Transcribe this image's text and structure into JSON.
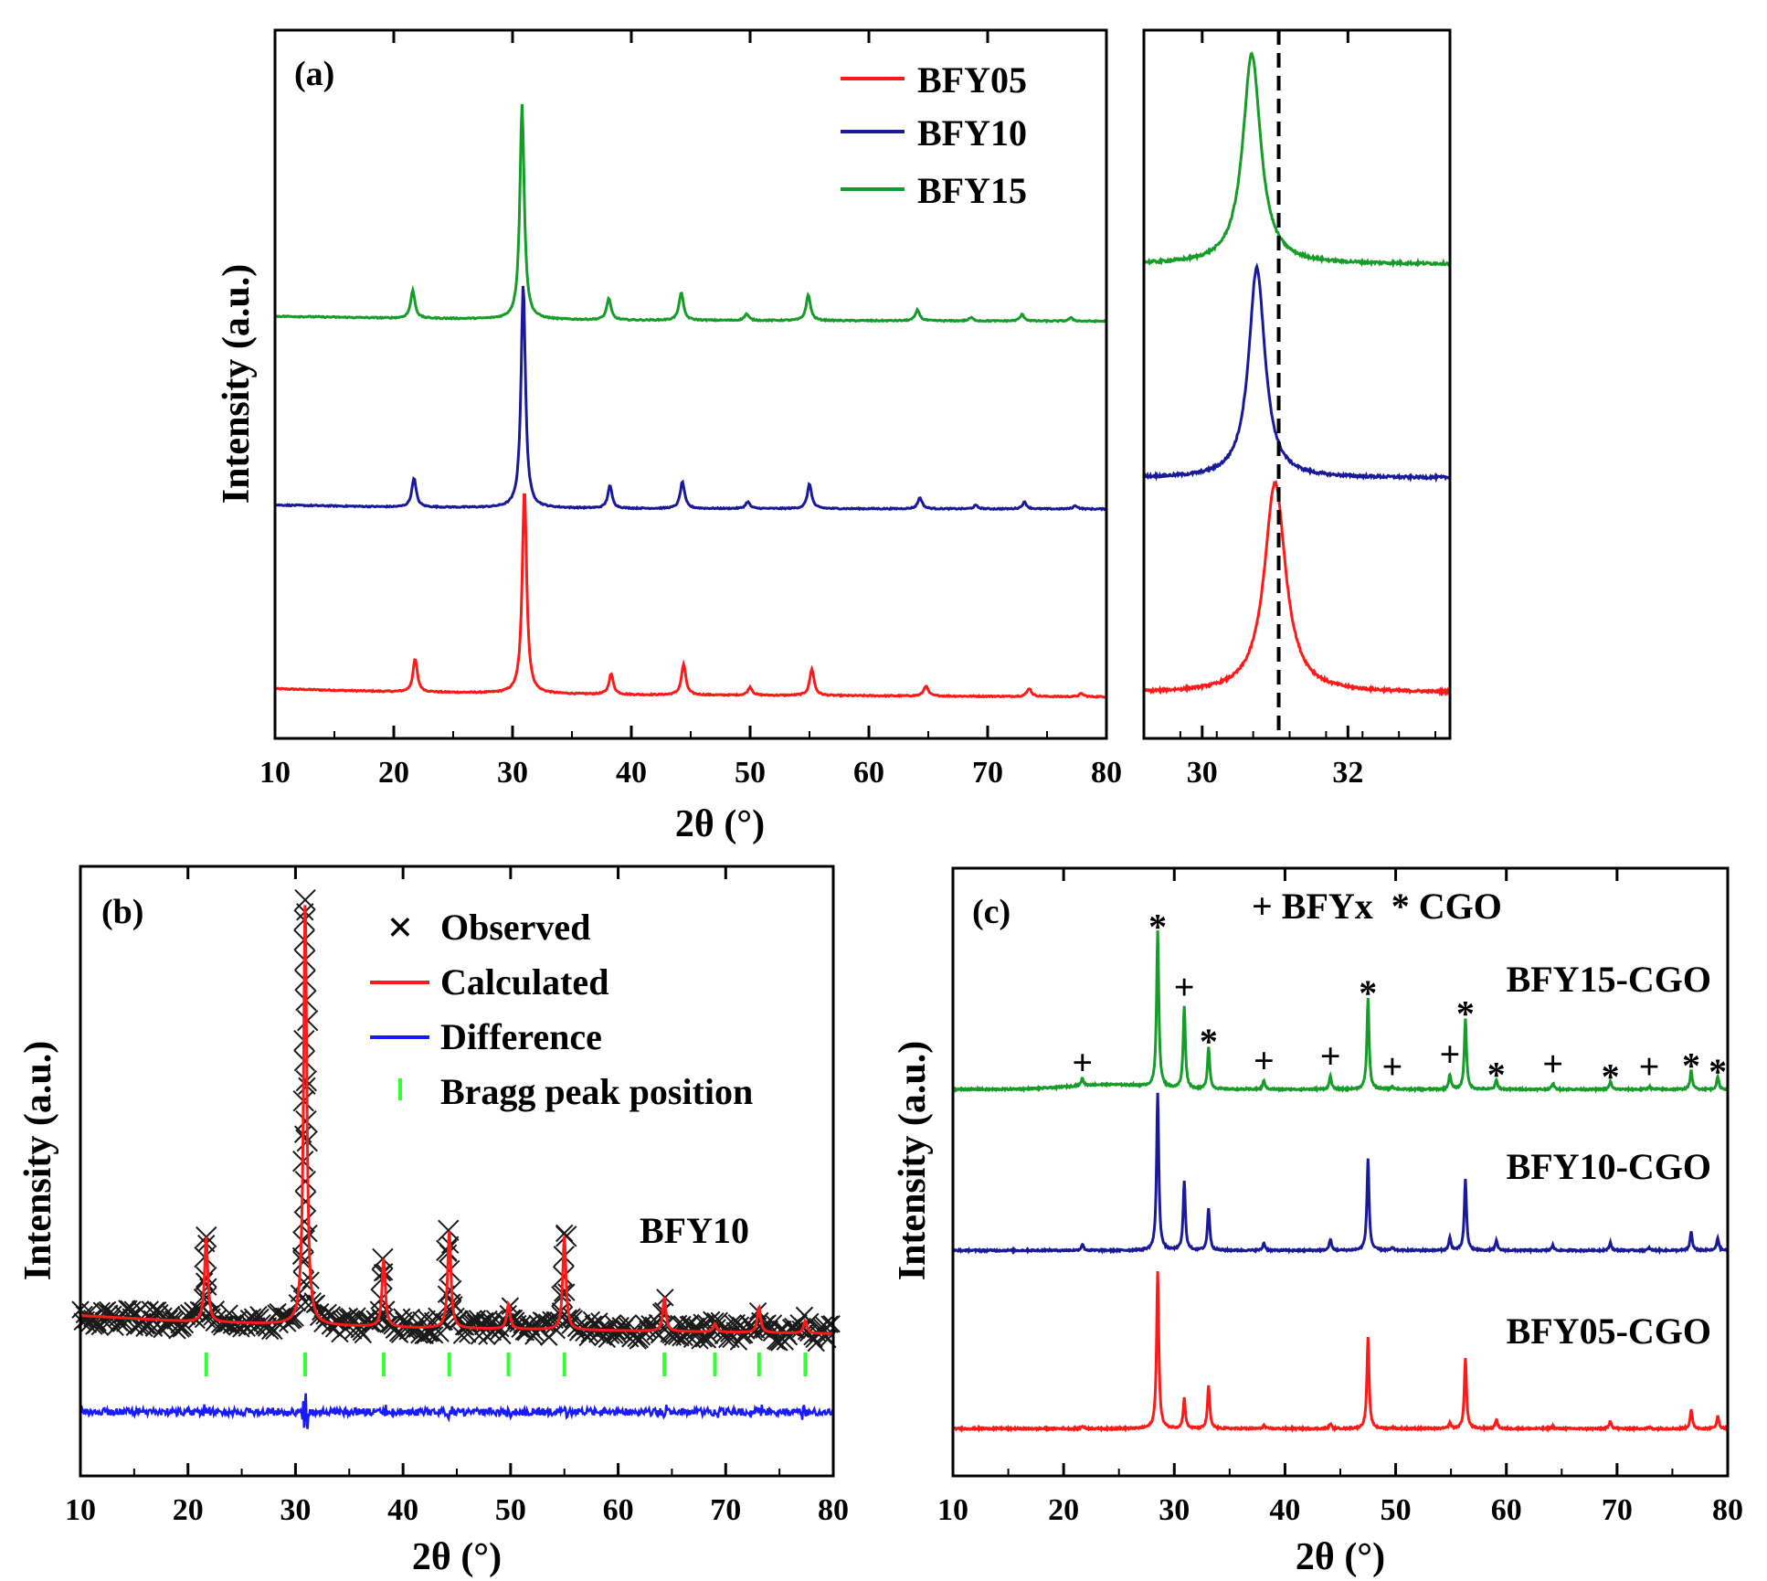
{
  "chart_data": [
    {
      "id": "a-main",
      "type": "line",
      "panel_label": "(a)",
      "xlabel": "2θ (°)",
      "ylabel": "Intensity (a.u.)",
      "xlim": [
        10,
        80
      ],
      "xticks": [
        10,
        20,
        30,
        40,
        50,
        60,
        70,
        80
      ],
      "legend": [
        "BFY05",
        "BFY10",
        "BFY15"
      ],
      "legend_position": "top-right",
      "series": [
        {
          "name": "BFY05",
          "color": "#ff1a1a",
          "offset": 0.0,
          "scale": 1.0,
          "peak_shift": 0.25,
          "background": [
            [
              10,
              0.13
            ],
            [
              20,
              0.1
            ],
            [
              40,
              0.07
            ],
            [
              80,
              0.05
            ]
          ],
          "peaks": [
            [
              21.8,
              0.16
            ],
            [
              31.0,
              1.0
            ],
            [
              38.3,
              0.1
            ],
            [
              44.4,
              0.15
            ],
            [
              50.0,
              0.04
            ],
            [
              55.2,
              0.13
            ],
            [
              64.8,
              0.05
            ],
            [
              73.5,
              0.04
            ],
            [
              77.9,
              0.015
            ]
          ]
        },
        {
          "name": "BFY10",
          "color": "#1a1a99",
          "offset": 0.42,
          "scale": 1.0,
          "peak_shift": 0.1,
          "background": [
            [
              10,
              0.07
            ],
            [
              20,
              0.05
            ],
            [
              40,
              0.035
            ],
            [
              80,
              0.03
            ]
          ],
          "peaks": [
            [
              21.7,
              0.13
            ],
            [
              30.9,
              1.0
            ],
            [
              38.2,
              0.1
            ],
            [
              44.3,
              0.12
            ],
            [
              49.8,
              0.03
            ],
            [
              55.0,
              0.11
            ],
            [
              64.3,
              0.05
            ],
            [
              69.0,
              0.015
            ],
            [
              73.1,
              0.03
            ],
            [
              77.4,
              0.015
            ]
          ]
        },
        {
          "name": "BFY15",
          "color": "#169c28",
          "offset": 0.84,
          "scale": 1.0,
          "peak_shift": 0.0,
          "background": [
            [
              10,
              0.06
            ],
            [
              20,
              0.04
            ],
            [
              40,
              0.02
            ],
            [
              80,
              0.01
            ]
          ],
          "peaks": [
            [
              21.6,
              0.13
            ],
            [
              30.8,
              1.0
            ],
            [
              38.1,
              0.1
            ],
            [
              44.2,
              0.13
            ],
            [
              49.7,
              0.03
            ],
            [
              54.9,
              0.12
            ],
            [
              64.1,
              0.05
            ],
            [
              68.6,
              0.015
            ],
            [
              72.9,
              0.03
            ],
            [
              77.0,
              0.015
            ]
          ]
        }
      ]
    },
    {
      "id": "a-zoom",
      "type": "line",
      "xlim": [
        29.2,
        33.4
      ],
      "xticks": [
        30,
        32
      ],
      "reference_line_x": 31.05,
      "series": [
        {
          "name": "BFY05",
          "color": "#ff1a1a",
          "center": 31.0,
          "width": 0.26,
          "offset": 0.0
        },
        {
          "name": "BFY10",
          "color": "#1a1a99",
          "center": 30.75,
          "width": 0.2,
          "offset": 0.42
        },
        {
          "name": "BFY15",
          "color": "#169c28",
          "center": 30.68,
          "width": 0.22,
          "offset": 0.84
        }
      ]
    },
    {
      "id": "b",
      "type": "line",
      "panel_label": "(b)",
      "xlabel": "2θ (°)",
      "ylabel": "Intensity (a.u.)",
      "xlim": [
        10,
        80
      ],
      "xticks": [
        10,
        20,
        30,
        40,
        50,
        60,
        70,
        80
      ],
      "annotation": "BFY10",
      "legend": [
        "Observed",
        "Calculated",
        "Difference",
        "Bragg peak position"
      ],
      "legend_position": "top-right",
      "calculated_peaks": [
        [
          21.7,
          0.2
        ],
        [
          30.9,
          1.0
        ],
        [
          38.2,
          0.16
        ],
        [
          44.3,
          0.23
        ],
        [
          49.8,
          0.06
        ],
        [
          55.0,
          0.22
        ],
        [
          64.3,
          0.08
        ],
        [
          69.0,
          0.02
        ],
        [
          73.1,
          0.06
        ],
        [
          77.4,
          0.03
        ]
      ],
      "background": [
        [
          10,
          0.12
        ],
        [
          20,
          0.09
        ],
        [
          40,
          0.06
        ],
        [
          80,
          0.03
        ]
      ],
      "bragg_positions": [
        21.7,
        30.9,
        38.2,
        44.3,
        49.8,
        55.0,
        64.3,
        69.0,
        73.1,
        77.4
      ],
      "colors": {
        "observed": "#1a1a1a",
        "calculated": "#ff1a1a",
        "difference": "#1a1aff",
        "bragg": "#33ff33"
      }
    },
    {
      "id": "c",
      "type": "line",
      "panel_label": "(c)",
      "xlabel": "2θ (°)",
      "ylabel": "Intensity (a.u.)",
      "xlim": [
        10,
        80
      ],
      "xticks": [
        10,
        20,
        30,
        40,
        50,
        60,
        70,
        80
      ],
      "legend_text": "+ BFYx  * CGO",
      "cgo_peaks": [
        [
          28.5,
          1.0
        ],
        [
          33.1,
          0.27
        ],
        [
          47.5,
          0.58
        ],
        [
          56.3,
          0.45
        ],
        [
          59.1,
          0.06
        ],
        [
          69.4,
          0.05
        ],
        [
          76.7,
          0.12
        ],
        [
          79.1,
          0.08
        ]
      ],
      "bfy_peaks": [
        [
          21.7,
          0.05
        ],
        [
          30.9,
          0.55
        ],
        [
          38.1,
          0.06
        ],
        [
          44.1,
          0.09
        ],
        [
          49.7,
          0.02
        ],
        [
          54.9,
          0.1
        ],
        [
          64.2,
          0.04
        ],
        [
          72.9,
          0.02
        ]
      ],
      "plus_markers": [
        21.7,
        30.9,
        38.1,
        44.1,
        49.7,
        54.9,
        64.2,
        72.9
      ],
      "star_markers": [
        28.5,
        33.1,
        47.5,
        56.3,
        59.1,
        69.4,
        76.7,
        79.1
      ],
      "series": [
        {
          "name": "BFY05-CGO",
          "color": "#ff1a1a",
          "offset": 0.0,
          "bfy_scale": 0.35
        },
        {
          "name": "BFY10-CGO",
          "color": "#1a1a99",
          "offset": 0.4,
          "bfy_scale": 0.8
        },
        {
          "name": "BFY15-CGO",
          "color": "#169c28",
          "offset": 0.8,
          "bfy_scale": 0.95
        }
      ]
    }
  ]
}
